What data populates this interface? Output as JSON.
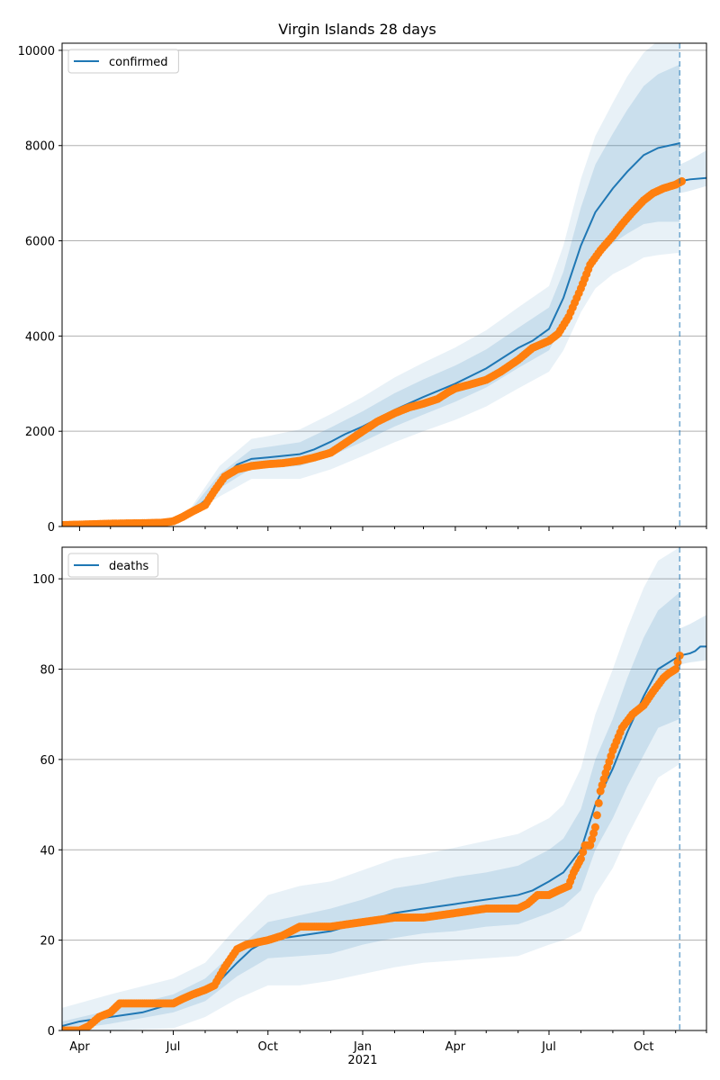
{
  "title": "Virgin Islands 28 days",
  "colors": {
    "model": "#1f77b4",
    "observed": "#ff7f0e",
    "band": "#1f77b4",
    "grid": "#b0b0b0",
    "vline": "#1f77b4"
  },
  "chart_data": [
    {
      "type": "line",
      "name": "confirmed",
      "legend": "confirmed",
      "legend_loc": "upper-left",
      "grid": "y",
      "ylim": [
        0,
        10150
      ],
      "yticks": [
        0,
        2000,
        4000,
        6000,
        8000,
        10000
      ],
      "ytick_labels": [
        "0",
        "2000",
        "4000",
        "6000",
        "8000",
        "10000"
      ],
      "xlim": [
        "2020-03-15",
        "2021-12-01"
      ],
      "forecast_start": "2021-11-05",
      "model_x": [
        "2020-03-15",
        "2020-05-01",
        "2020-06-15",
        "2020-07-01",
        "2020-07-15",
        "2020-08-01",
        "2020-08-15",
        "2020-09-01",
        "2020-09-15",
        "2020-10-01",
        "2020-11-01",
        "2020-11-15",
        "2020-12-01",
        "2020-12-15",
        "2021-01-01",
        "2021-02-01",
        "2021-03-01",
        "2021-04-01",
        "2021-05-01",
        "2021-06-01",
        "2021-06-15",
        "2021-07-01",
        "2021-07-15",
        "2021-08-01",
        "2021-08-15",
        "2021-09-01",
        "2021-09-15",
        "2021-10-01",
        "2021-10-15",
        "2021-11-05"
      ],
      "model_y": [
        50,
        80,
        90,
        100,
        250,
        550,
        950,
        1300,
        1420,
        1450,
        1520,
        1620,
        1780,
        1940,
        2100,
        2450,
        2720,
        3000,
        3320,
        3750,
        3900,
        4150,
        4800,
        5900,
        6600,
        7100,
        7450,
        7800,
        7950,
        8050
      ],
      "band_x": [
        "2020-03-15",
        "2020-06-15",
        "2020-07-15",
        "2020-08-15",
        "2020-09-15",
        "2020-10-01",
        "2020-11-01",
        "2020-12-01",
        "2021-01-01",
        "2021-02-01",
        "2021-03-01",
        "2021-04-01",
        "2021-05-01",
        "2021-06-01",
        "2021-07-01",
        "2021-07-15",
        "2021-08-01",
        "2021-08-15",
        "2021-09-01",
        "2021-09-15",
        "2021-10-01",
        "2021-10-15",
        "2021-11-05"
      ],
      "band_center": [
        50,
        90,
        250,
        950,
        1420,
        1450,
        1520,
        1780,
        2100,
        2450,
        2720,
        3000,
        3320,
        3750,
        4150,
        4800,
        5900,
        6600,
        7100,
        7450,
        7800,
        7950,
        8050
      ],
      "band_half_widths": [
        [
          3,
          5,
          20,
          150,
          200,
          220,
          250,
          300,
          320,
          350,
          370,
          380,
          400,
          420,
          450,
          550,
          800,
          1000,
          1150,
          1300,
          1450,
          1550,
          1650
        ],
        [
          6,
          10,
          45,
          320,
          420,
          450,
          520,
          580,
          620,
          680,
          720,
          760,
          800,
          850,
          900,
          1100,
          1400,
          1600,
          1800,
          2000,
          2150,
          2250,
          2300
        ]
      ],
      "outer_band": {
        "x": [
          "2021-11-05",
          "2021-11-15",
          "2021-12-01"
        ],
        "upper": [
          7600,
          7700,
          7900
        ],
        "lower": [
          7000,
          7050,
          7150
        ]
      },
      "extension_x": [
        "2021-11-05",
        "2021-11-15",
        "2021-12-01"
      ],
      "extension_y": [
        7250,
        7290,
        7320
      ],
      "observed_x": [
        "2020-03-15",
        "2020-04-01",
        "2020-05-01",
        "2020-06-01",
        "2020-06-20",
        "2020-07-01",
        "2020-07-10",
        "2020-07-20",
        "2020-08-01",
        "2020-08-10",
        "2020-08-20",
        "2020-09-01",
        "2020-09-15",
        "2020-10-01",
        "2020-10-15",
        "2020-11-01",
        "2020-11-15",
        "2020-12-01",
        "2020-12-15",
        "2021-01-01",
        "2021-01-15",
        "2021-02-01",
        "2021-02-15",
        "2021-03-01",
        "2021-03-15",
        "2021-03-25",
        "2021-04-01",
        "2021-04-15",
        "2021-05-01",
        "2021-05-15",
        "2021-06-01",
        "2021-06-15",
        "2021-07-01",
        "2021-07-10",
        "2021-07-20",
        "2021-08-01",
        "2021-08-10",
        "2021-08-20",
        "2021-09-01",
        "2021-09-10",
        "2021-09-20",
        "2021-10-01",
        "2021-10-10",
        "2021-10-20",
        "2021-11-01",
        "2021-11-07"
      ],
      "observed_y": [
        30,
        40,
        60,
        70,
        80,
        110,
        200,
        320,
        450,
        750,
        1050,
        1200,
        1270,
        1310,
        1330,
        1380,
        1450,
        1550,
        1750,
        2000,
        2200,
        2380,
        2500,
        2580,
        2680,
        2820,
        2900,
        2980,
        3080,
        3250,
        3500,
        3750,
        3900,
        4050,
        4400,
        5000,
        5500,
        5800,
        6100,
        6350,
        6600,
        6850,
        7000,
        7100,
        7180,
        7250
      ]
    },
    {
      "type": "line",
      "name": "deaths",
      "legend": "deaths",
      "legend_loc": "upper-left",
      "grid": "y",
      "ylim": [
        0,
        107
      ],
      "yticks": [
        0,
        20,
        40,
        60,
        80,
        100
      ],
      "ytick_labels": [
        "0",
        "20",
        "40",
        "60",
        "80",
        "100"
      ],
      "xlim": [
        "2020-03-15",
        "2021-12-01"
      ],
      "xtick_labels": [
        "Apr",
        "Jul",
        "Oct",
        "Jan",
        "Apr",
        "Jul",
        "Oct"
      ],
      "xtick_dates": [
        "2020-04-01",
        "2020-07-01",
        "2020-10-01",
        "2021-01-01",
        "2021-04-01",
        "2021-07-01",
        "2021-10-01"
      ],
      "year_label": "2021",
      "forecast_start": "2021-11-05",
      "model_x": [
        "2020-03-15",
        "2020-04-01",
        "2020-05-01",
        "2020-06-01",
        "2020-07-01",
        "2020-07-15",
        "2020-08-01",
        "2020-08-15",
        "2020-09-01",
        "2020-09-15",
        "2020-10-01",
        "2020-11-01",
        "2020-12-01",
        "2021-01-01",
        "2021-02-01",
        "2021-03-01",
        "2021-04-01",
        "2021-05-01",
        "2021-06-01",
        "2021-06-15",
        "2021-07-01",
        "2021-07-15",
        "2021-08-01",
        "2021-08-15",
        "2021-09-01",
        "2021-09-15",
        "2021-10-01",
        "2021-10-15",
        "2021-11-05"
      ],
      "model_y": [
        1,
        2,
        3,
        4,
        6,
        7,
        9,
        11,
        15,
        18,
        20,
        21,
        22,
        24,
        26,
        27,
        28,
        29,
        30,
        31,
        33,
        35,
        40,
        50,
        58,
        66,
        74,
        80,
        83
      ],
      "band_x": [
        "2020-03-15",
        "2020-05-01",
        "2020-07-01",
        "2020-08-01",
        "2020-09-01",
        "2020-10-01",
        "2020-11-01",
        "2020-12-01",
        "2021-01-01",
        "2021-02-01",
        "2021-03-01",
        "2021-04-01",
        "2021-05-01",
        "2021-06-01",
        "2021-07-01",
        "2021-07-15",
        "2021-08-01",
        "2021-08-15",
        "2021-09-01",
        "2021-09-15",
        "2021-10-01",
        "2021-10-15",
        "2021-11-05"
      ],
      "band_center": [
        1,
        3,
        6,
        9,
        15,
        20,
        21,
        22,
        24,
        26,
        27,
        28,
        29,
        30,
        33,
        35,
        40,
        50,
        58,
        66,
        74,
        80,
        83
      ],
      "band_half_widths": [
        [
          1,
          1.5,
          2,
          2.5,
          3,
          4,
          4.5,
          5,
          5,
          5.5,
          5.5,
          6,
          6,
          6.5,
          7,
          7.5,
          9,
          10,
          11,
          12,
          13,
          13,
          14
        ],
        [
          4,
          5,
          5.5,
          6,
          8,
          10,
          11,
          11,
          11.5,
          12,
          12,
          12.5,
          13,
          13.5,
          14,
          15,
          18,
          20,
          22,
          23,
          24,
          24,
          24
        ]
      ],
      "outer_band": {
        "x": [
          "2021-11-05",
          "2021-11-15",
          "2021-12-01"
        ],
        "upper": [
          89,
          90,
          92
        ],
        "lower": [
          81,
          81.5,
          82
        ]
      },
      "extension_x": [
        "2021-11-05",
        "2021-11-15",
        "2021-11-20",
        "2021-11-25",
        "2021-12-01"
      ],
      "extension_y": [
        83,
        83.5,
        84,
        85,
        85
      ],
      "observed_x": [
        "2020-03-15",
        "2020-04-01",
        "2020-04-10",
        "2020-04-20",
        "2020-05-01",
        "2020-05-10",
        "2020-06-01",
        "2020-07-01",
        "2020-07-10",
        "2020-07-20",
        "2020-08-01",
        "2020-08-10",
        "2020-08-20",
        "2020-09-01",
        "2020-09-10",
        "2020-10-01",
        "2020-10-15",
        "2020-11-01",
        "2020-12-01",
        "2021-01-01",
        "2021-02-01",
        "2021-03-01",
        "2021-04-01",
        "2021-05-01",
        "2021-06-01",
        "2021-06-10",
        "2021-06-20",
        "2021-07-01",
        "2021-07-10",
        "2021-07-20",
        "2021-07-25",
        "2021-08-01",
        "2021-08-05",
        "2021-08-10",
        "2021-08-15",
        "2021-08-20",
        "2021-08-25",
        "2021-09-01",
        "2021-09-10",
        "2021-09-20",
        "2021-10-01",
        "2021-10-10",
        "2021-10-20",
        "2021-10-25",
        "2021-11-01",
        "2021-11-05"
      ],
      "observed_y": [
        0,
        0,
        1,
        3,
        4,
        6,
        6,
        6,
        7,
        8,
        9,
        10,
        14,
        18,
        19,
        20,
        21,
        23,
        23,
        24,
        25,
        25,
        26,
        27,
        27,
        28,
        30,
        30,
        31,
        32,
        35,
        38,
        41,
        41,
        45,
        53,
        57,
        62,
        67,
        70,
        72,
        75,
        78,
        79,
        80,
        83
      ]
    }
  ]
}
